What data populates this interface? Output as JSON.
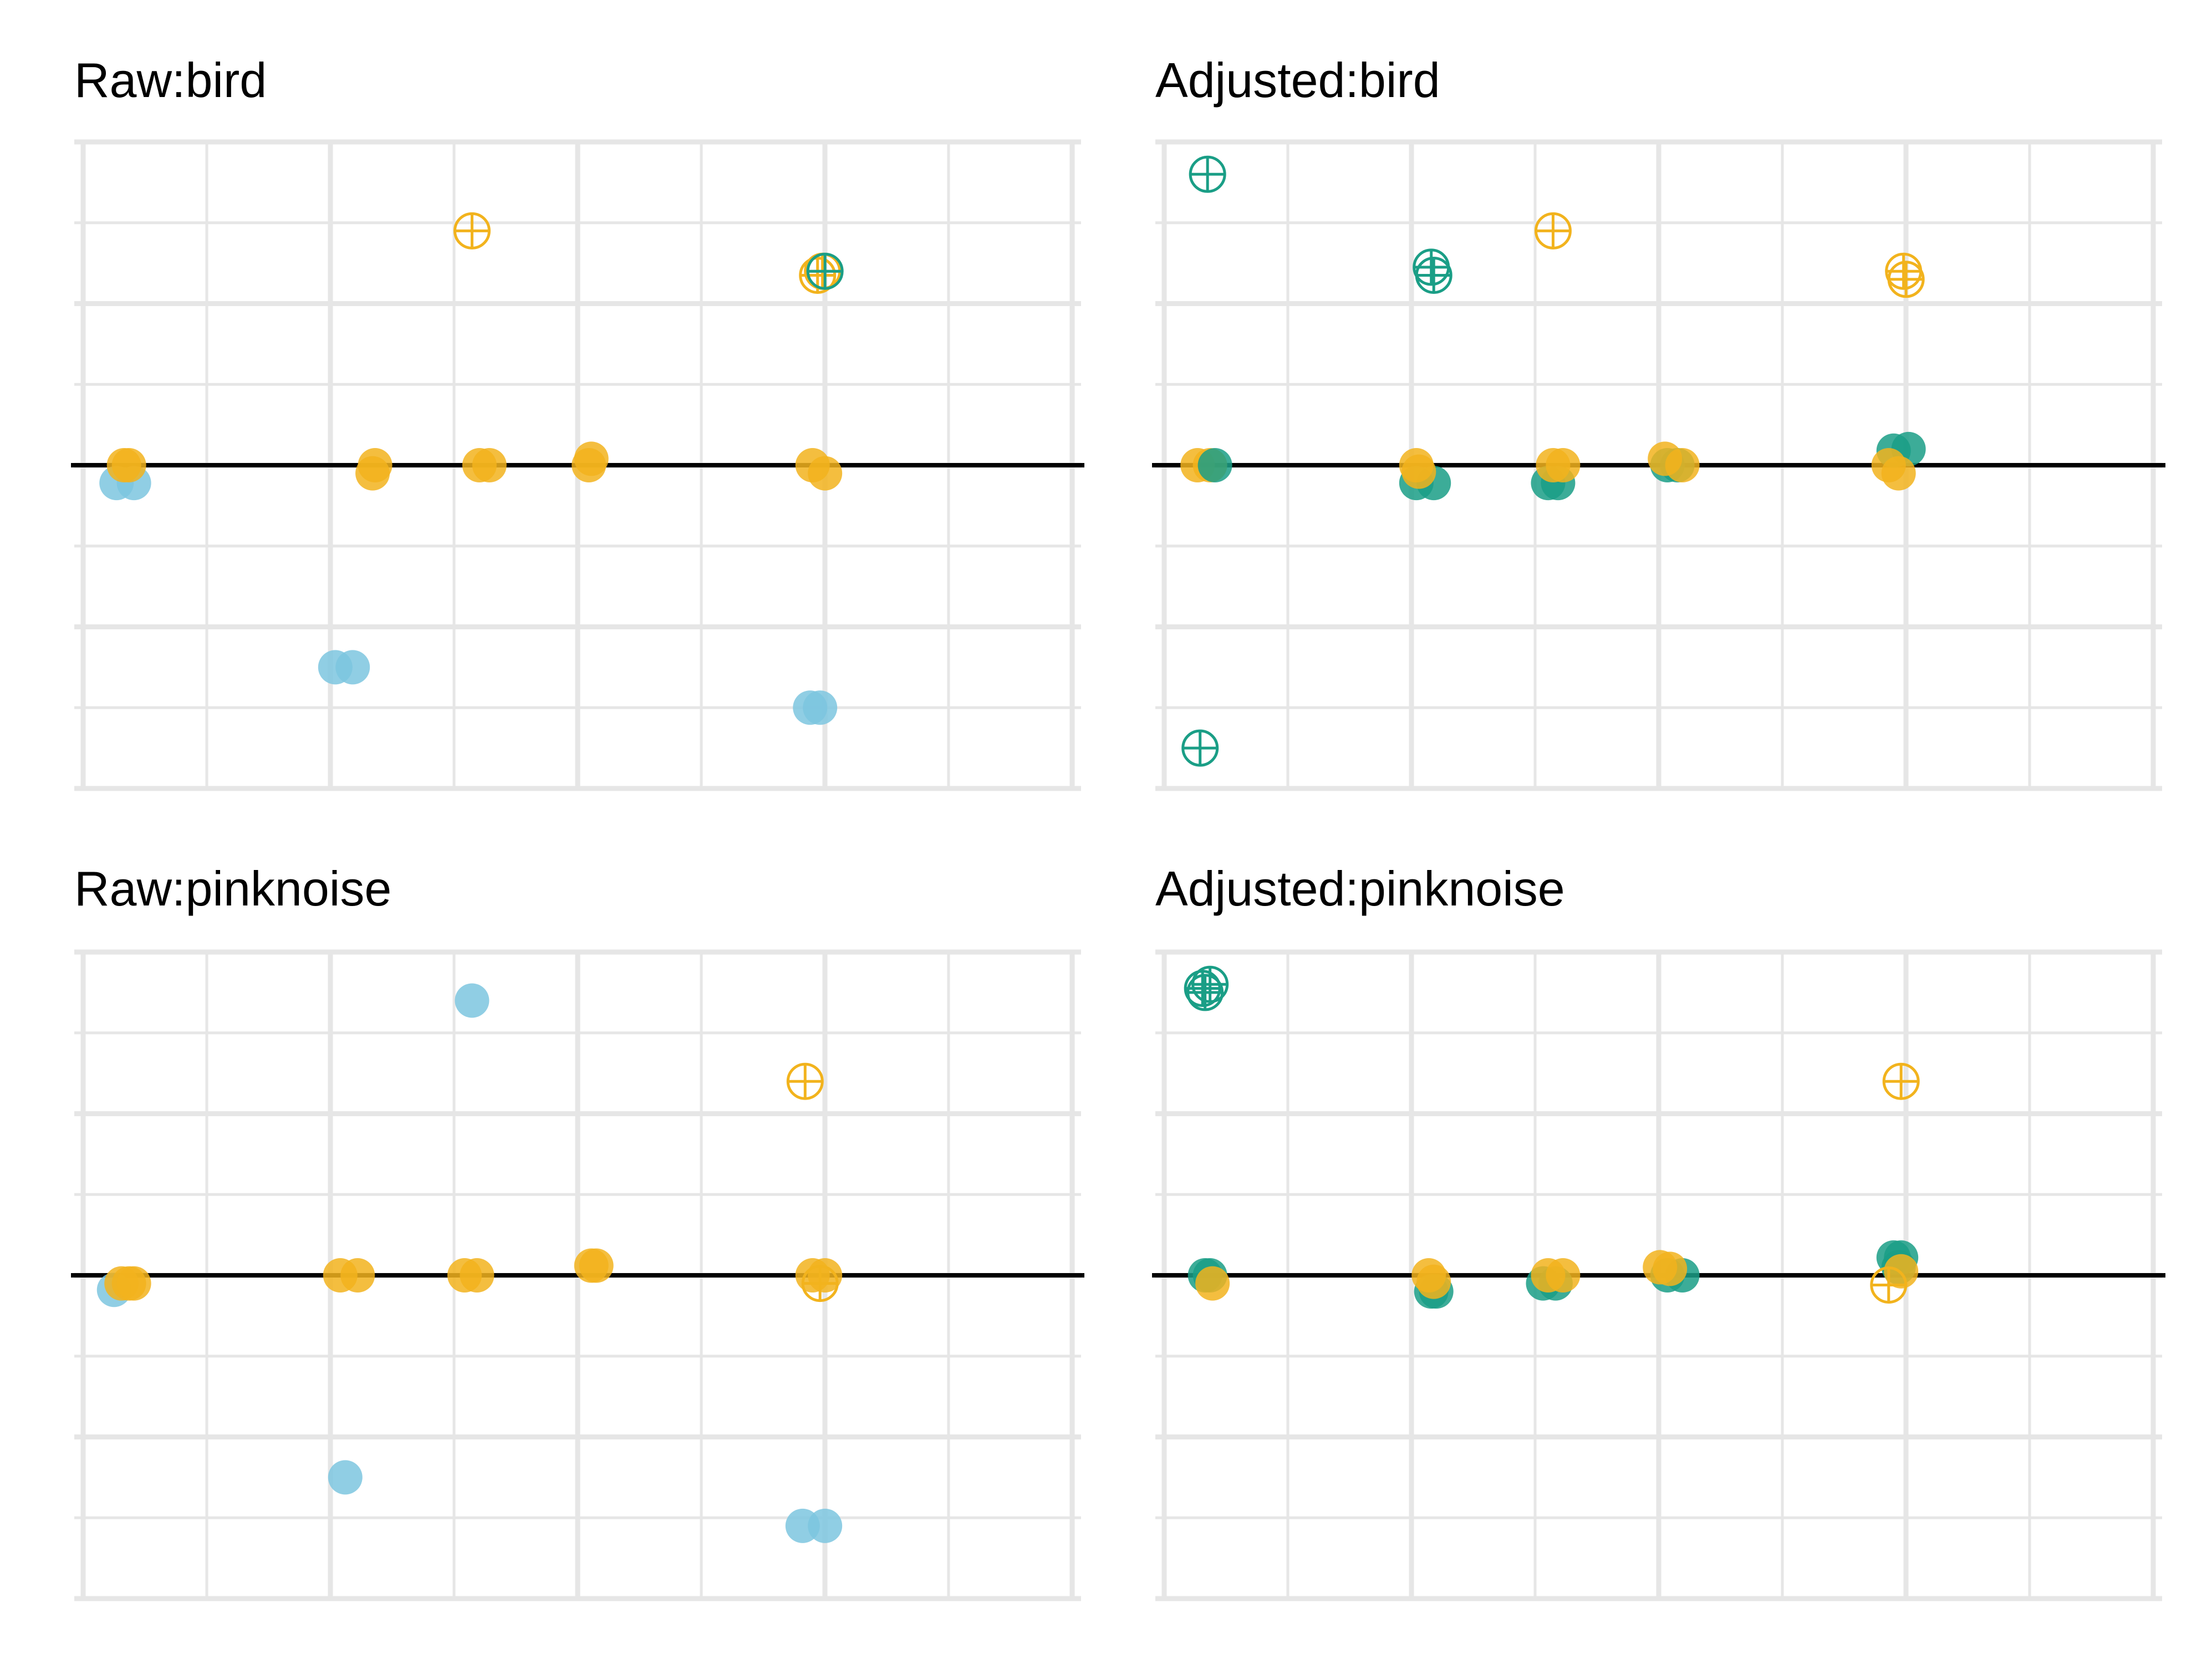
{
  "colors": {
    "blue": "#7dc6df",
    "orange": "#f2b31d",
    "teal": "#1a9e86",
    "grid": "#e6e6e6",
    "zero_line": "#000000"
  },
  "chart_data": [
    {
      "type": "scatter",
      "title": "Raw:bird",
      "xlim": [
        0.75,
        4.8
      ],
      "ylim": [
        -4.0,
        4.0
      ],
      "grid": true,
      "reference_line": 0,
      "points": [
        {
          "x": 0.92,
          "y": -0.22,
          "color": "blue",
          "shape": "filled"
        },
        {
          "x": 0.99,
          "y": -0.22,
          "color": "blue",
          "shape": "filled"
        },
        {
          "x": 0.95,
          "y": 0.0,
          "color": "orange",
          "shape": "filled"
        },
        {
          "x": 0.97,
          "y": 0.0,
          "color": "orange",
          "shape": "filled"
        },
        {
          "x": 1.95,
          "y": -0.1,
          "color": "orange",
          "shape": "filled"
        },
        {
          "x": 1.96,
          "y": 0.0,
          "color": "orange",
          "shape": "filled"
        },
        {
          "x": 1.8,
          "y": -2.5,
          "color": "blue",
          "shape": "filled"
        },
        {
          "x": 1.87,
          "y": -2.5,
          "color": "blue",
          "shape": "filled"
        },
        {
          "x": 2.35,
          "y": 2.9,
          "color": "orange",
          "shape": "crossed"
        },
        {
          "x": 2.38,
          "y": 0.0,
          "color": "orange",
          "shape": "filled"
        },
        {
          "x": 2.42,
          "y": 0.0,
          "color": "orange",
          "shape": "filled"
        },
        {
          "x": 2.83,
          "y": 0.08,
          "color": "orange",
          "shape": "filled"
        },
        {
          "x": 2.82,
          "y": 0.0,
          "color": "orange",
          "shape": "filled"
        },
        {
          "x": 3.74,
          "y": 2.35,
          "color": "orange",
          "shape": "crossed"
        },
        {
          "x": 3.76,
          "y": 2.4,
          "color": "orange",
          "shape": "crossed"
        },
        {
          "x": 3.77,
          "y": 2.4,
          "color": "teal",
          "shape": "crossed"
        },
        {
          "x": 3.72,
          "y": 0.0,
          "color": "orange",
          "shape": "filled"
        },
        {
          "x": 3.77,
          "y": -0.1,
          "color": "orange",
          "shape": "filled"
        },
        {
          "x": 3.71,
          "y": -3.0,
          "color": "blue",
          "shape": "filled"
        },
        {
          "x": 3.75,
          "y": -3.0,
          "color": "blue",
          "shape": "filled"
        }
      ]
    },
    {
      "type": "scatter",
      "title": "Adjusted:bird",
      "xlim": [
        0.75,
        4.8
      ],
      "ylim": [
        -4.0,
        4.0
      ],
      "grid": true,
      "reference_line": 0,
      "points": [
        {
          "x": 0.96,
          "y": 3.6,
          "color": "teal",
          "shape": "crossed"
        },
        {
          "x": 0.93,
          "y": -3.5,
          "color": "teal",
          "shape": "crossed"
        },
        {
          "x": 0.92,
          "y": 0.0,
          "color": "orange",
          "shape": "filled"
        },
        {
          "x": 0.97,
          "y": 0.0,
          "color": "orange",
          "shape": "filled"
        },
        {
          "x": 0.99,
          "y": 0.0,
          "color": "teal",
          "shape": "filled"
        },
        {
          "x": 1.8,
          "y": -0.22,
          "color": "teal",
          "shape": "filled"
        },
        {
          "x": 1.87,
          "y": -0.22,
          "color": "teal",
          "shape": "filled"
        },
        {
          "x": 1.8,
          "y": 0.0,
          "color": "orange",
          "shape": "filled"
        },
        {
          "x": 1.81,
          "y": -0.08,
          "color": "orange",
          "shape": "filled"
        },
        {
          "x": 1.86,
          "y": 2.45,
          "color": "teal",
          "shape": "crossed"
        },
        {
          "x": 1.87,
          "y": 2.35,
          "color": "teal",
          "shape": "crossed"
        },
        {
          "x": 2.35,
          "y": 2.9,
          "color": "orange",
          "shape": "crossed"
        },
        {
          "x": 2.33,
          "y": -0.22,
          "color": "teal",
          "shape": "filled"
        },
        {
          "x": 2.37,
          "y": -0.22,
          "color": "teal",
          "shape": "filled"
        },
        {
          "x": 2.35,
          "y": 0.0,
          "color": "orange",
          "shape": "filled"
        },
        {
          "x": 2.39,
          "y": 0.0,
          "color": "orange",
          "shape": "filled"
        },
        {
          "x": 2.81,
          "y": 0.0,
          "color": "teal",
          "shape": "filled"
        },
        {
          "x": 2.85,
          "y": 0.0,
          "color": "teal",
          "shape": "filled"
        },
        {
          "x": 2.8,
          "y": 0.08,
          "color": "orange",
          "shape": "filled"
        },
        {
          "x": 2.87,
          "y": 0.0,
          "color": "orange",
          "shape": "filled"
        },
        {
          "x": 3.72,
          "y": 0.18,
          "color": "teal",
          "shape": "filled"
        },
        {
          "x": 3.78,
          "y": 0.2,
          "color": "teal",
          "shape": "filled"
        },
        {
          "x": 3.7,
          "y": 0.0,
          "color": "orange",
          "shape": "filled"
        },
        {
          "x": 3.74,
          "y": -0.1,
          "color": "orange",
          "shape": "filled"
        },
        {
          "x": 3.76,
          "y": 2.4,
          "color": "orange",
          "shape": "crossed"
        },
        {
          "x": 3.77,
          "y": 2.3,
          "color": "orange",
          "shape": "crossed"
        }
      ]
    },
    {
      "type": "scatter",
      "title": "Raw:pinknoise",
      "xlim": [
        0.75,
        4.8
      ],
      "ylim": [
        -4.0,
        4.0
      ],
      "grid": true,
      "reference_line": 0,
      "points": [
        {
          "x": 0.91,
          "y": -0.18,
          "color": "blue",
          "shape": "filled"
        },
        {
          "x": 0.94,
          "y": -0.1,
          "color": "orange",
          "shape": "filled"
        },
        {
          "x": 0.97,
          "y": -0.1,
          "color": "orange",
          "shape": "filled"
        },
        {
          "x": 0.99,
          "y": -0.1,
          "color": "orange",
          "shape": "filled"
        },
        {
          "x": 1.82,
          "y": 0.0,
          "color": "orange",
          "shape": "filled"
        },
        {
          "x": 1.89,
          "y": 0.0,
          "color": "orange",
          "shape": "filled"
        },
        {
          "x": 1.84,
          "y": -2.5,
          "color": "blue",
          "shape": "filled"
        },
        {
          "x": 2.35,
          "y": 3.4,
          "color": "blue",
          "shape": "filled"
        },
        {
          "x": 2.32,
          "y": 0.0,
          "color": "orange",
          "shape": "filled"
        },
        {
          "x": 2.37,
          "y": 0.0,
          "color": "orange",
          "shape": "filled"
        },
        {
          "x": 2.83,
          "y": 0.12,
          "color": "orange",
          "shape": "filled"
        },
        {
          "x": 2.85,
          "y": 0.12,
          "color": "orange",
          "shape": "filled"
        },
        {
          "x": 3.69,
          "y": 2.4,
          "color": "orange",
          "shape": "crossed"
        },
        {
          "x": 3.75,
          "y": -0.1,
          "color": "orange",
          "shape": "crossed"
        },
        {
          "x": 3.72,
          "y": 0.0,
          "color": "orange",
          "shape": "filled"
        },
        {
          "x": 3.77,
          "y": 0.0,
          "color": "orange",
          "shape": "filled"
        },
        {
          "x": 3.68,
          "y": -3.1,
          "color": "blue",
          "shape": "filled"
        },
        {
          "x": 3.77,
          "y": -3.1,
          "color": "blue",
          "shape": "filled"
        }
      ]
    },
    {
      "type": "scatter",
      "title": "Adjusted:pinknoise",
      "xlim": [
        0.75,
        4.8
      ],
      "ylim": [
        -4.0,
        4.0
      ],
      "grid": true,
      "reference_line": 0,
      "points": [
        {
          "x": 0.94,
          "y": 3.55,
          "color": "teal",
          "shape": "crossed"
        },
        {
          "x": 0.97,
          "y": 3.6,
          "color": "teal",
          "shape": "crossed"
        },
        {
          "x": 0.95,
          "y": 3.5,
          "color": "teal",
          "shape": "crossed"
        },
        {
          "x": 0.95,
          "y": 0.0,
          "color": "teal",
          "shape": "filled"
        },
        {
          "x": 0.97,
          "y": 0.0,
          "color": "teal",
          "shape": "filled"
        },
        {
          "x": 0.98,
          "y": -0.1,
          "color": "orange",
          "shape": "filled"
        },
        {
          "x": 1.86,
          "y": -0.2,
          "color": "teal",
          "shape": "filled"
        },
        {
          "x": 1.88,
          "y": -0.2,
          "color": "teal",
          "shape": "filled"
        },
        {
          "x": 1.85,
          "y": 0.0,
          "color": "orange",
          "shape": "filled"
        },
        {
          "x": 1.87,
          "y": -0.08,
          "color": "orange",
          "shape": "filled"
        },
        {
          "x": 2.31,
          "y": -0.1,
          "color": "teal",
          "shape": "filled"
        },
        {
          "x": 2.36,
          "y": -0.1,
          "color": "teal",
          "shape": "filled"
        },
        {
          "x": 2.33,
          "y": 0.0,
          "color": "orange",
          "shape": "filled"
        },
        {
          "x": 2.39,
          "y": 0.0,
          "color": "orange",
          "shape": "filled"
        },
        {
          "x": 2.81,
          "y": 0.0,
          "color": "teal",
          "shape": "filled"
        },
        {
          "x": 2.87,
          "y": 0.0,
          "color": "teal",
          "shape": "filled"
        },
        {
          "x": 2.78,
          "y": 0.1,
          "color": "orange",
          "shape": "filled"
        },
        {
          "x": 2.82,
          "y": 0.08,
          "color": "orange",
          "shape": "filled"
        },
        {
          "x": 3.72,
          "y": 0.22,
          "color": "teal",
          "shape": "filled"
        },
        {
          "x": 3.75,
          "y": 0.22,
          "color": "teal",
          "shape": "filled"
        },
        {
          "x": 3.74,
          "y": 0.1,
          "color": "teal",
          "shape": "filled"
        },
        {
          "x": 3.75,
          "y": 0.05,
          "color": "orange",
          "shape": "filled"
        },
        {
          "x": 3.7,
          "y": -0.12,
          "color": "orange",
          "shape": "crossed"
        },
        {
          "x": 3.75,
          "y": 2.4,
          "color": "orange",
          "shape": "crossed"
        }
      ]
    }
  ]
}
